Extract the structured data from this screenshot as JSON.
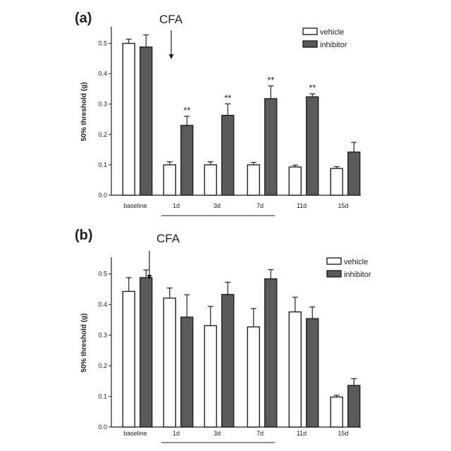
{
  "colors": {
    "vehicle": "#ffffff",
    "inhibitor": "#5a5a5a",
    "axis": "#222222"
  },
  "chart_data": [
    {
      "type": "bar",
      "panel": "(a)",
      "annotation": "CFA",
      "ylabel": "50% threshold (g)",
      "ylim": [
        0,
        0.55
      ],
      "yticks": [
        "0.0",
        "0.1",
        "0.2",
        "0.3",
        "0.4",
        "0.5"
      ],
      "categories": [
        "baseline",
        "1d",
        "3d",
        "7d",
        "11d",
        "15d"
      ],
      "legend": [
        "vehicle",
        "inhibitor"
      ],
      "legend_position": "top-right",
      "series": [
        {
          "name": "vehicle",
          "values": [
            0.5,
            0.1,
            0.1,
            0.1,
            0.093,
            0.088
          ],
          "errors": [
            0.014,
            0.01,
            0.01,
            0.008,
            0.006,
            0.006
          ]
        },
        {
          "name": "inhibitor",
          "values": [
            0.488,
            0.23,
            0.263,
            0.318,
            0.324,
            0.142
          ],
          "errors": [
            0.04,
            0.03,
            0.038,
            0.042,
            0.01,
            0.032
          ]
        }
      ],
      "significance": [
        "",
        "**",
        "**",
        "**",
        "**",
        ""
      ]
    },
    {
      "type": "bar",
      "panel": "(b)",
      "annotation": "CFA",
      "ylabel": "50% threshold (g)",
      "ylim": [
        0,
        0.55
      ],
      "yticks": [
        "0.0",
        "0.1",
        "0.2",
        "0.3",
        "0.4",
        "0.5"
      ],
      "categories": [
        "baseline",
        "1d",
        "3d",
        "7d",
        "11d",
        "15d"
      ],
      "legend": [
        "vehicle",
        "inhibitor"
      ],
      "legend_position": "top-right",
      "series": [
        {
          "name": "vehicle",
          "values": [
            0.443,
            0.421,
            0.331,
            0.327,
            0.376,
            0.098
          ],
          "errors": [
            0.045,
            0.033,
            0.063,
            0.06,
            0.048,
            0.006
          ]
        },
        {
          "name": "inhibitor",
          "values": [
            0.488,
            0.359,
            0.433,
            0.484,
            0.354,
            0.136
          ],
          "errors": [
            0.025,
            0.073,
            0.04,
            0.03,
            0.038,
            0.022
          ]
        }
      ],
      "significance": [
        "",
        "",
        "",
        "",
        "",
        ""
      ]
    }
  ]
}
